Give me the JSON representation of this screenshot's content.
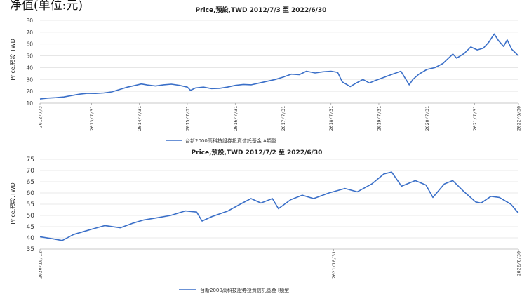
{
  "header_text": "净值(单位:元)",
  "chart_data": [
    {
      "type": "line",
      "title": "Price,預設,TWD 2012/7/3 至 2022/6/30",
      "ylabel": "Price,預設,TWD",
      "ylim": [
        10,
        80
      ],
      "yticks": [
        10,
        20,
        30,
        40,
        50,
        60,
        70,
        80
      ],
      "xlim": [
        "2012/7/3",
        "2022/6/30"
      ],
      "xticks": [
        "2012/7/3",
        "2013/7/31",
        "2014/7/31",
        "2015/7/31",
        "2016/7/31",
        "2017/7/31",
        "2018/7/31",
        "2019/7/31",
        "2020/7/31",
        "2021/7/31",
        "2022/6/30"
      ],
      "color": "#3a6fc8",
      "grid": "horizontal",
      "legend_position": "bottom-center",
      "series": [
        {
          "name": "台新2000高科技證券投資信託基金 A類型",
          "points": [
            [
              "2012/7/3",
              13.5
            ],
            [
              "2012/9/1",
              14.3
            ],
            [
              "2012/11/1",
              14.6
            ],
            [
              "2013/1/1",
              15.2
            ],
            [
              "2013/3/1",
              16.4
            ],
            [
              "2013/5/1",
              17.6
            ],
            [
              "2013/7/1",
              18.3
            ],
            [
              "2013/9/1",
              18.2
            ],
            [
              "2013/11/1",
              18.6
            ],
            [
              "2014/1/1",
              19.5
            ],
            [
              "2014/3/1",
              21.5
            ],
            [
              "2014/5/1",
              23.5
            ],
            [
              "2014/7/1",
              25.0
            ],
            [
              "2014/8/15",
              26.2
            ],
            [
              "2014/10/1",
              25.3
            ],
            [
              "2014/12/1",
              24.5
            ],
            [
              "2015/2/1",
              25.5
            ],
            [
              "2015/4/1",
              26.0
            ],
            [
              "2015/6/1",
              25.0
            ],
            [
              "2015/8/1",
              23.5
            ],
            [
              "2015/8/25",
              20.8
            ],
            [
              "2015/10/1",
              22.8
            ],
            [
              "2015/12/1",
              23.5
            ],
            [
              "2016/2/1",
              22.3
            ],
            [
              "2016/4/1",
              22.5
            ],
            [
              "2016/6/1",
              23.5
            ],
            [
              "2016/8/1",
              25.0
            ],
            [
              "2016/10/1",
              25.8
            ],
            [
              "2016/12/1",
              25.5
            ],
            [
              "2017/2/1",
              27.0
            ],
            [
              "2017/4/1",
              28.5
            ],
            [
              "2017/6/1",
              30.0
            ],
            [
              "2017/8/1",
              32.0
            ],
            [
              "2017/10/1",
              34.5
            ],
            [
              "2017/12/1",
              34.0
            ],
            [
              "2018/1/25",
              37.0
            ],
            [
              "2018/4/1",
              35.5
            ],
            [
              "2018/6/1",
              36.5
            ],
            [
              "2018/8/1",
              37.0
            ],
            [
              "2018/9/20",
              36.0
            ],
            [
              "2018/10/25",
              28.0
            ],
            [
              "2018/12/25",
              24.0
            ],
            [
              "2019/2/1",
              26.5
            ],
            [
              "2019/4/1",
              30.0
            ],
            [
              "2019/5/20",
              27.0
            ],
            [
              "2019/7/1",
              29.0
            ],
            [
              "2019/9/1",
              31.5
            ],
            [
              "2019/11/1",
              34.0
            ],
            [
              "2020/1/15",
              37.0
            ],
            [
              "2020/3/19",
              25.5
            ],
            [
              "2020/4/15",
              30.0
            ],
            [
              "2020/6/1",
              34.5
            ],
            [
              "2020/8/1",
              38.5
            ],
            [
              "2020/10/1",
              40.0
            ],
            [
              "2020/12/1",
              43.5
            ],
            [
              "2021/2/15",
              51.5
            ],
            [
              "2021/3/15",
              48.0
            ],
            [
              "2021/5/12",
              52.0
            ],
            [
              "2021/7/1",
              57.5
            ],
            [
              "2021/8/20",
              55.0
            ],
            [
              "2021/10/5",
              56.5
            ],
            [
              "2021/11/15",
              61.5
            ],
            [
              "2021/12/27",
              68.5
            ],
            [
              "2022/1/28",
              63.0
            ],
            [
              "2022/3/8",
              58.0
            ],
            [
              "2022/4/5",
              63.5
            ],
            [
              "2022/5/10",
              55.5
            ],
            [
              "2022/6/30",
              50.0
            ]
          ]
        }
      ]
    },
    {
      "type": "line",
      "title": "Price,預設,TWD 2012/7/2 至 2022/6/30",
      "ylabel": "Price,預設,TWD",
      "ylim": [
        35,
        75
      ],
      "yticks": [
        35,
        40,
        45,
        50,
        55,
        60,
        65,
        70,
        75
      ],
      "xlim": [
        "2020/10/12",
        "2022/6/30"
      ],
      "xticks": [
        "2020/10/12",
        "2021/10/31",
        "2022/6/30"
      ],
      "color": "#3a6fc8",
      "grid": "horizontal",
      "legend_position": "bottom-center",
      "series": [
        {
          "name": "台新2000高科技證券投資信託基金 I類型",
          "points": [
            [
              "2020/10/12",
              40.5
            ],
            [
              "2020/10/30",
              39.5
            ],
            [
              "2020/11/10",
              38.8
            ],
            [
              "2020/11/25",
              41.5
            ],
            [
              "2020/12/15",
              43.5
            ],
            [
              "2021/1/5",
              45.5
            ],
            [
              "2021/1/25",
              44.5
            ],
            [
              "2021/2/10",
              46.5
            ],
            [
              "2021/2/25",
              48.0
            ],
            [
              "2021/3/15",
              49.0
            ],
            [
              "2021/4/1",
              50.0
            ],
            [
              "2021/4/20",
              52.0
            ],
            [
              "2021/5/5",
              51.5
            ],
            [
              "2021/5/12",
              47.5
            ],
            [
              "2021/5/25",
              49.5
            ],
            [
              "2021/6/15",
              52.0
            ],
            [
              "2021/7/1",
              55.0
            ],
            [
              "2021/7/15",
              57.5
            ],
            [
              "2021/7/28",
              55.5
            ],
            [
              "2021/8/12",
              57.5
            ],
            [
              "2021/8/20",
              53.0
            ],
            [
              "2021/9/5",
              57.0
            ],
            [
              "2021/9/20",
              59.0
            ],
            [
              "2021/10/5",
              57.5
            ],
            [
              "2021/10/25",
              60.0
            ],
            [
              "2021/11/15",
              62.0
            ],
            [
              "2021/12/1",
              60.5
            ],
            [
              "2021/12/20",
              64.0
            ],
            [
              "2022/1/5",
              68.5
            ],
            [
              "2022/1/15",
              69.3
            ],
            [
              "2022/1/28",
              63.0
            ],
            [
              "2022/2/15",
              65.5
            ],
            [
              "2022/3/1",
              63.5
            ],
            [
              "2022/3/10",
              58.0
            ],
            [
              "2022/3/25",
              64.0
            ],
            [
              "2022/4/5",
              65.5
            ],
            [
              "2022/4/20",
              60.5
            ],
            [
              "2022/5/5",
              56.0
            ],
            [
              "2022/5/12",
              55.5
            ],
            [
              "2022/5/25",
              58.5
            ],
            [
              "2022/6/5",
              58.0
            ],
            [
              "2022/6/20",
              55.0
            ],
            [
              "2022/6/30",
              51.0
            ]
          ]
        }
      ]
    }
  ]
}
